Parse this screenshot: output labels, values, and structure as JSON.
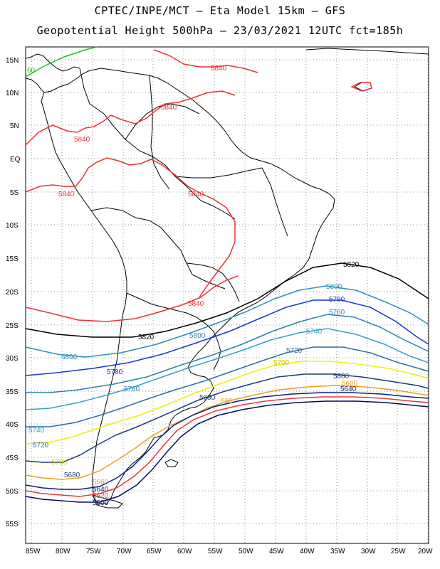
{
  "header": {
    "title_line1": "CPTEC/INPE/MCT –  Eta Model 15km – GFS",
    "title_line2": "Geopotential Height 500hPa – 23/03/2021 12UTC fct=185h"
  },
  "axes": {
    "lat_labels": [
      "15N",
      "10N",
      "5N",
      "EQ",
      "5S",
      "10S",
      "15S",
      "20S",
      "25S",
      "30S",
      "35S",
      "40S",
      "45S",
      "50S",
      "55S"
    ],
    "lon_labels": [
      "85W",
      "80W",
      "75W",
      "70W",
      "65W",
      "60W",
      "55W",
      "50W",
      "45W",
      "40W",
      "35W",
      "30W",
      "25W",
      "20W"
    ]
  },
  "colors": {
    "c5860": "#20c020",
    "c5840": "#ee3030",
    "c5820": "#000000",
    "c5800": "#2c8fb8",
    "c5780": "#1836d8",
    "c5760": "#2d80a8",
    "c5740": "#34a0c8",
    "c5720": "#2a70a8",
    "c5700": "#f0f000",
    "c5680": "#1c3c78",
    "c5660": "#e8a020",
    "c5640": "#0a2080",
    "c5620": "#e83838",
    "c5600": "#0a0a60",
    "coast": "#000000",
    "grid": "#999999"
  },
  "contour_labels": [
    {
      "name": "5860",
      "text": "60",
      "color": "#20c020"
    },
    {
      "name": "5840-a",
      "text": "5840",
      "color": "#ee3030"
    },
    {
      "name": "5840-b",
      "text": "5840",
      "color": "#ee3030"
    },
    {
      "name": "5840-c",
      "text": "5840",
      "color": "#ee3030"
    },
    {
      "name": "5840-d",
      "text": "5840",
      "color": "#ee3030"
    },
    {
      "name": "5840-e",
      "text": "5840",
      "color": "#ee3030"
    },
    {
      "name": "5840-f",
      "text": "5840",
      "color": "#ee3030"
    },
    {
      "name": "5820-a",
      "text": "5820",
      "color": "#000000"
    },
    {
      "name": "5820-b",
      "text": "5820",
      "color": "#000000"
    },
    {
      "name": "5800-a",
      "text": "5800",
      "color": "#2c8fb8"
    },
    {
      "name": "5800-b",
      "text": "5800",
      "color": "#2c8fb8"
    },
    {
      "name": "5800-c",
      "text": "5800",
      "color": "#2c8fb8"
    },
    {
      "name": "5780-a",
      "text": "5780",
      "color": "#1836d8"
    },
    {
      "name": "5780-b",
      "text": "5780",
      "color": "#1836d8"
    },
    {
      "name": "5760-a",
      "text": "5760",
      "color": "#2d80a8"
    },
    {
      "name": "5760-b",
      "text": "5760",
      "color": "#2d80a8"
    },
    {
      "name": "5740-a",
      "text": "5740",
      "color": "#34a0c8"
    },
    {
      "name": "5740-b",
      "text": "5740",
      "color": "#34a0c8"
    },
    {
      "name": "5720-a",
      "text": "5720",
      "color": "#2a70a8"
    },
    {
      "name": "5720-b",
      "text": "5720",
      "color": "#2a70a8"
    },
    {
      "name": "5700-a",
      "text": "5700",
      "color": "#c8c800"
    },
    {
      "name": "5700-b",
      "text": "5700",
      "color": "#c8c800"
    },
    {
      "name": "5680-a",
      "text": "5680",
      "color": "#1c3c78"
    },
    {
      "name": "5680-b",
      "text": "5680",
      "color": "#1c3c78"
    },
    {
      "name": "5680-c",
      "text": "5680",
      "color": "#1c3c78"
    },
    {
      "name": "5660-a",
      "text": "5660",
      "color": "#e8a020"
    },
    {
      "name": "5660-b",
      "text": "660",
      "color": "#e8a020"
    },
    {
      "name": "5660-c",
      "text": "5660",
      "color": "#e8a020"
    },
    {
      "name": "5640-a",
      "text": "5640",
      "color": "#0a2080"
    },
    {
      "name": "5640-b",
      "text": "5640",
      "color": "#0a2080"
    },
    {
      "name": "5620",
      "text": "5620",
      "color": "#e83838"
    },
    {
      "name": "5600",
      "text": "5600",
      "color": "#0a0a60"
    }
  ]
}
